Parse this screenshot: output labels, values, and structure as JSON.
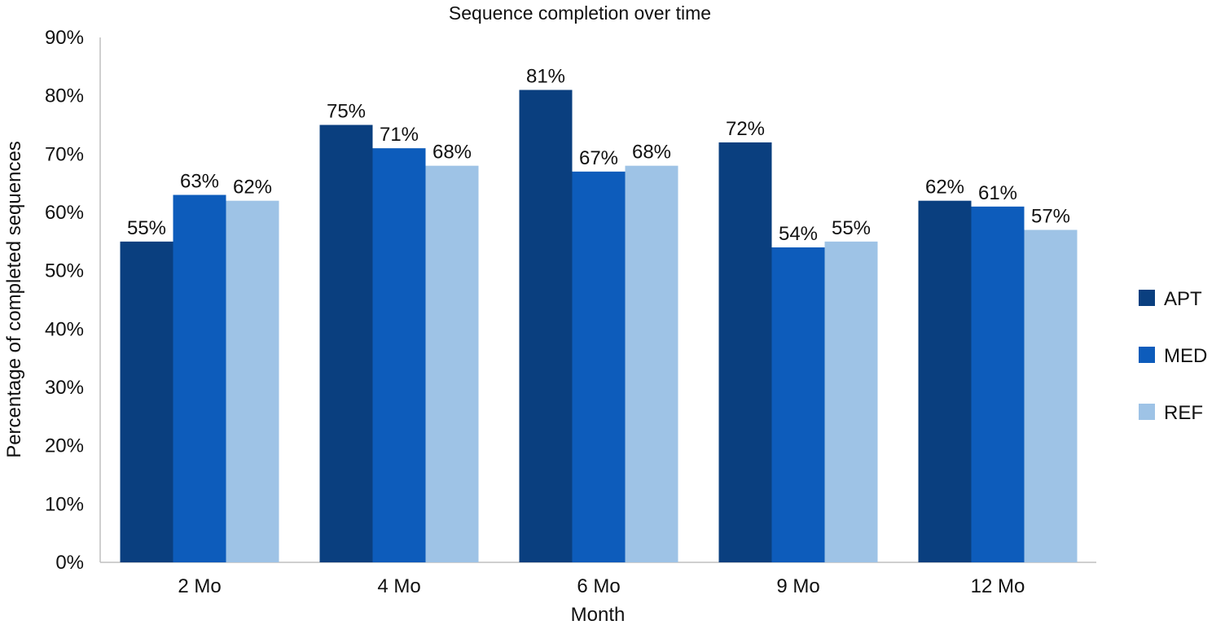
{
  "chart_data": {
    "type": "bar",
    "title": "Sequence completion over time",
    "xlabel": "Month",
    "ylabel": "Percentage of completed sequences",
    "categories": [
      "2 Mo",
      "4 Mo",
      "6 Mo",
      "9 Mo",
      "12 Mo"
    ],
    "series": [
      {
        "name": "APT",
        "color": "#0a3f7f",
        "values": [
          55,
          75,
          81,
          72,
          62
        ],
        "labels": [
          "55%",
          "75%",
          "81%",
          "72%",
          "62%"
        ]
      },
      {
        "name": "MED",
        "color": "#0d5cbb",
        "values": [
          63,
          71,
          67,
          54,
          61
        ],
        "labels": [
          "63%",
          "71%",
          "67%",
          "54%",
          "61%"
        ]
      },
      {
        "name": "REF",
        "color": "#9ec3e6",
        "values": [
          62,
          68,
          68,
          55,
          57
        ],
        "labels": [
          "62%",
          "68%",
          "68%",
          "55%",
          "57%"
        ]
      }
    ],
    "ylim": [
      0,
      90
    ],
    "yticks": [
      0,
      10,
      20,
      30,
      40,
      50,
      60,
      70,
      80,
      90
    ],
    "ytick_labels": [
      "0%",
      "10%",
      "20%",
      "30%",
      "40%",
      "50%",
      "60%",
      "70%",
      "80%",
      "90%"
    ],
    "grid": false,
    "legend_position": "right"
  }
}
